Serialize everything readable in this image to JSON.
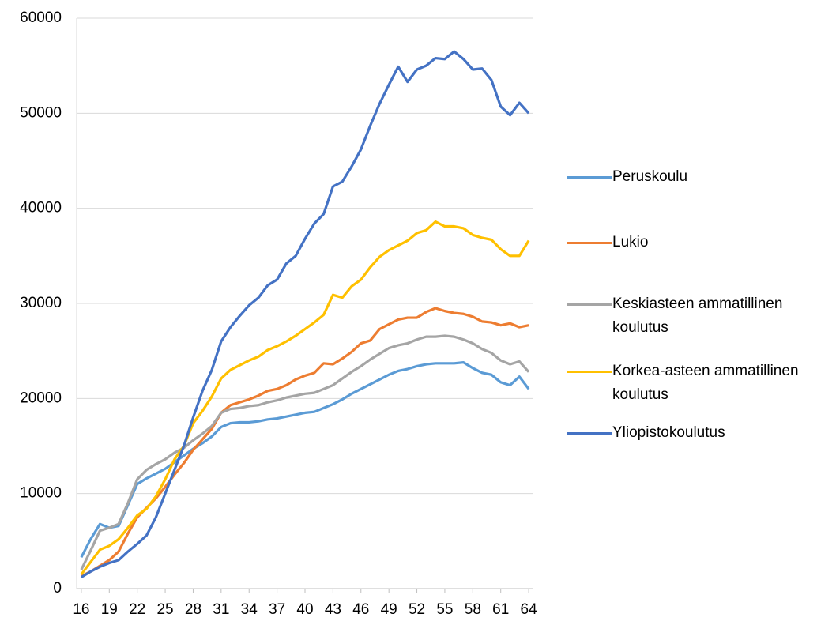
{
  "chart_data": {
    "type": "line",
    "x": [
      16,
      17,
      18,
      19,
      20,
      21,
      22,
      23,
      24,
      25,
      26,
      27,
      28,
      29,
      30,
      31,
      32,
      33,
      34,
      35,
      36,
      37,
      38,
      39,
      40,
      41,
      42,
      43,
      44,
      45,
      46,
      47,
      48,
      49,
      50,
      51,
      52,
      53,
      54,
      55,
      56,
      57,
      58,
      59,
      60,
      61,
      62,
      63,
      64
    ],
    "xlim": [
      15.5,
      64.5
    ],
    "xticks": [
      16,
      19,
      22,
      25,
      28,
      31,
      34,
      37,
      40,
      43,
      46,
      49,
      52,
      55,
      58,
      61,
      64
    ],
    "ylim": [
      0,
      60000
    ],
    "yticks": [
      0,
      10000,
      20000,
      30000,
      40000,
      50000,
      60000
    ],
    "grid": true,
    "legend": "right",
    "series": [
      {
        "name": "Peruskoulu",
        "color": "#5b9bd5",
        "values": [
          3300,
          5200,
          6800,
          6400,
          6600,
          8800,
          11000,
          11600,
          12100,
          12600,
          13300,
          14000,
          14700,
          15300,
          16000,
          17000,
          17400,
          17500,
          17500,
          17600,
          17800,
          17900,
          18100,
          18300,
          18500,
          18600,
          19000,
          19400,
          19900,
          20500,
          21000,
          21500,
          22000,
          22500,
          22900,
          23100,
          23400,
          23600,
          23700,
          23700,
          23700,
          23800,
          23200,
          22700,
          22500,
          21700,
          21400,
          22300,
          21000
        ]
      },
      {
        "name": "Lukio",
        "color": "#ed7d31",
        "values": [
          1300,
          1800,
          2400,
          3000,
          3900,
          5800,
          7500,
          8500,
          9500,
          10700,
          12000,
          13200,
          14600,
          15700,
          16800,
          18500,
          19300,
          19600,
          19900,
          20300,
          20800,
          21000,
          21400,
          22000,
          22400,
          22700,
          23700,
          23600,
          24200,
          24900,
          25800,
          26100,
          27300,
          27800,
          28300,
          28500,
          28500,
          29100,
          29500,
          29200,
          29000,
          28900,
          28600,
          28100,
          28000,
          27700,
          27900,
          27500,
          27700
        ]
      },
      {
        "name": "Keskiasteen ammatillinen koulutus",
        "color": "#a5a5a5",
        "values": [
          2000,
          4000,
          6100,
          6400,
          6800,
          9000,
          11500,
          12500,
          13100,
          13600,
          14300,
          14800,
          15600,
          16300,
          17100,
          18500,
          18900,
          19000,
          19200,
          19300,
          19600,
          19800,
          20100,
          20300,
          20500,
          20600,
          21000,
          21400,
          22100,
          22800,
          23400,
          24100,
          24700,
          25300,
          25600,
          25800,
          26200,
          26500,
          26500,
          26600,
          26500,
          26200,
          25800,
          25200,
          24800,
          24000,
          23600,
          23900,
          22800
        ]
      },
      {
        "name": "Korkea-asteen ammatillinen koulutus",
        "color": "#ffc000",
        "values": [
          1500,
          2800,
          4100,
          4500,
          5200,
          6400,
          7700,
          8400,
          9700,
          11500,
          13600,
          15000,
          17400,
          18700,
          20200,
          22100,
          23000,
          23500,
          24000,
          24400,
          25100,
          25500,
          26000,
          26600,
          27300,
          28000,
          28800,
          30900,
          30600,
          31800,
          32500,
          33800,
          34900,
          35600,
          36100,
          36600,
          37400,
          37700,
          38600,
          38100,
          38100,
          37900,
          37200,
          36900,
          36700,
          35700,
          35000,
          35000,
          36600
        ]
      },
      {
        "name": "Yliopistokoulutus",
        "color": "#4472c4",
        "values": [
          1200,
          1800,
          2300,
          2700,
          3000,
          3900,
          4700,
          5600,
          7500,
          10000,
          12500,
          15000,
          18000,
          20800,
          23000,
          26000,
          27500,
          28700,
          29800,
          30600,
          31900,
          32500,
          34200,
          35000,
          36800,
          38400,
          39400,
          42300,
          42800,
          44400,
          46200,
          48700,
          51000,
          53000,
          54900,
          53300,
          54600,
          55000,
          55800,
          55700,
          56500,
          55700,
          54600,
          54700,
          53500,
          50700,
          49800,
          51100,
          50000
        ]
      }
    ]
  }
}
